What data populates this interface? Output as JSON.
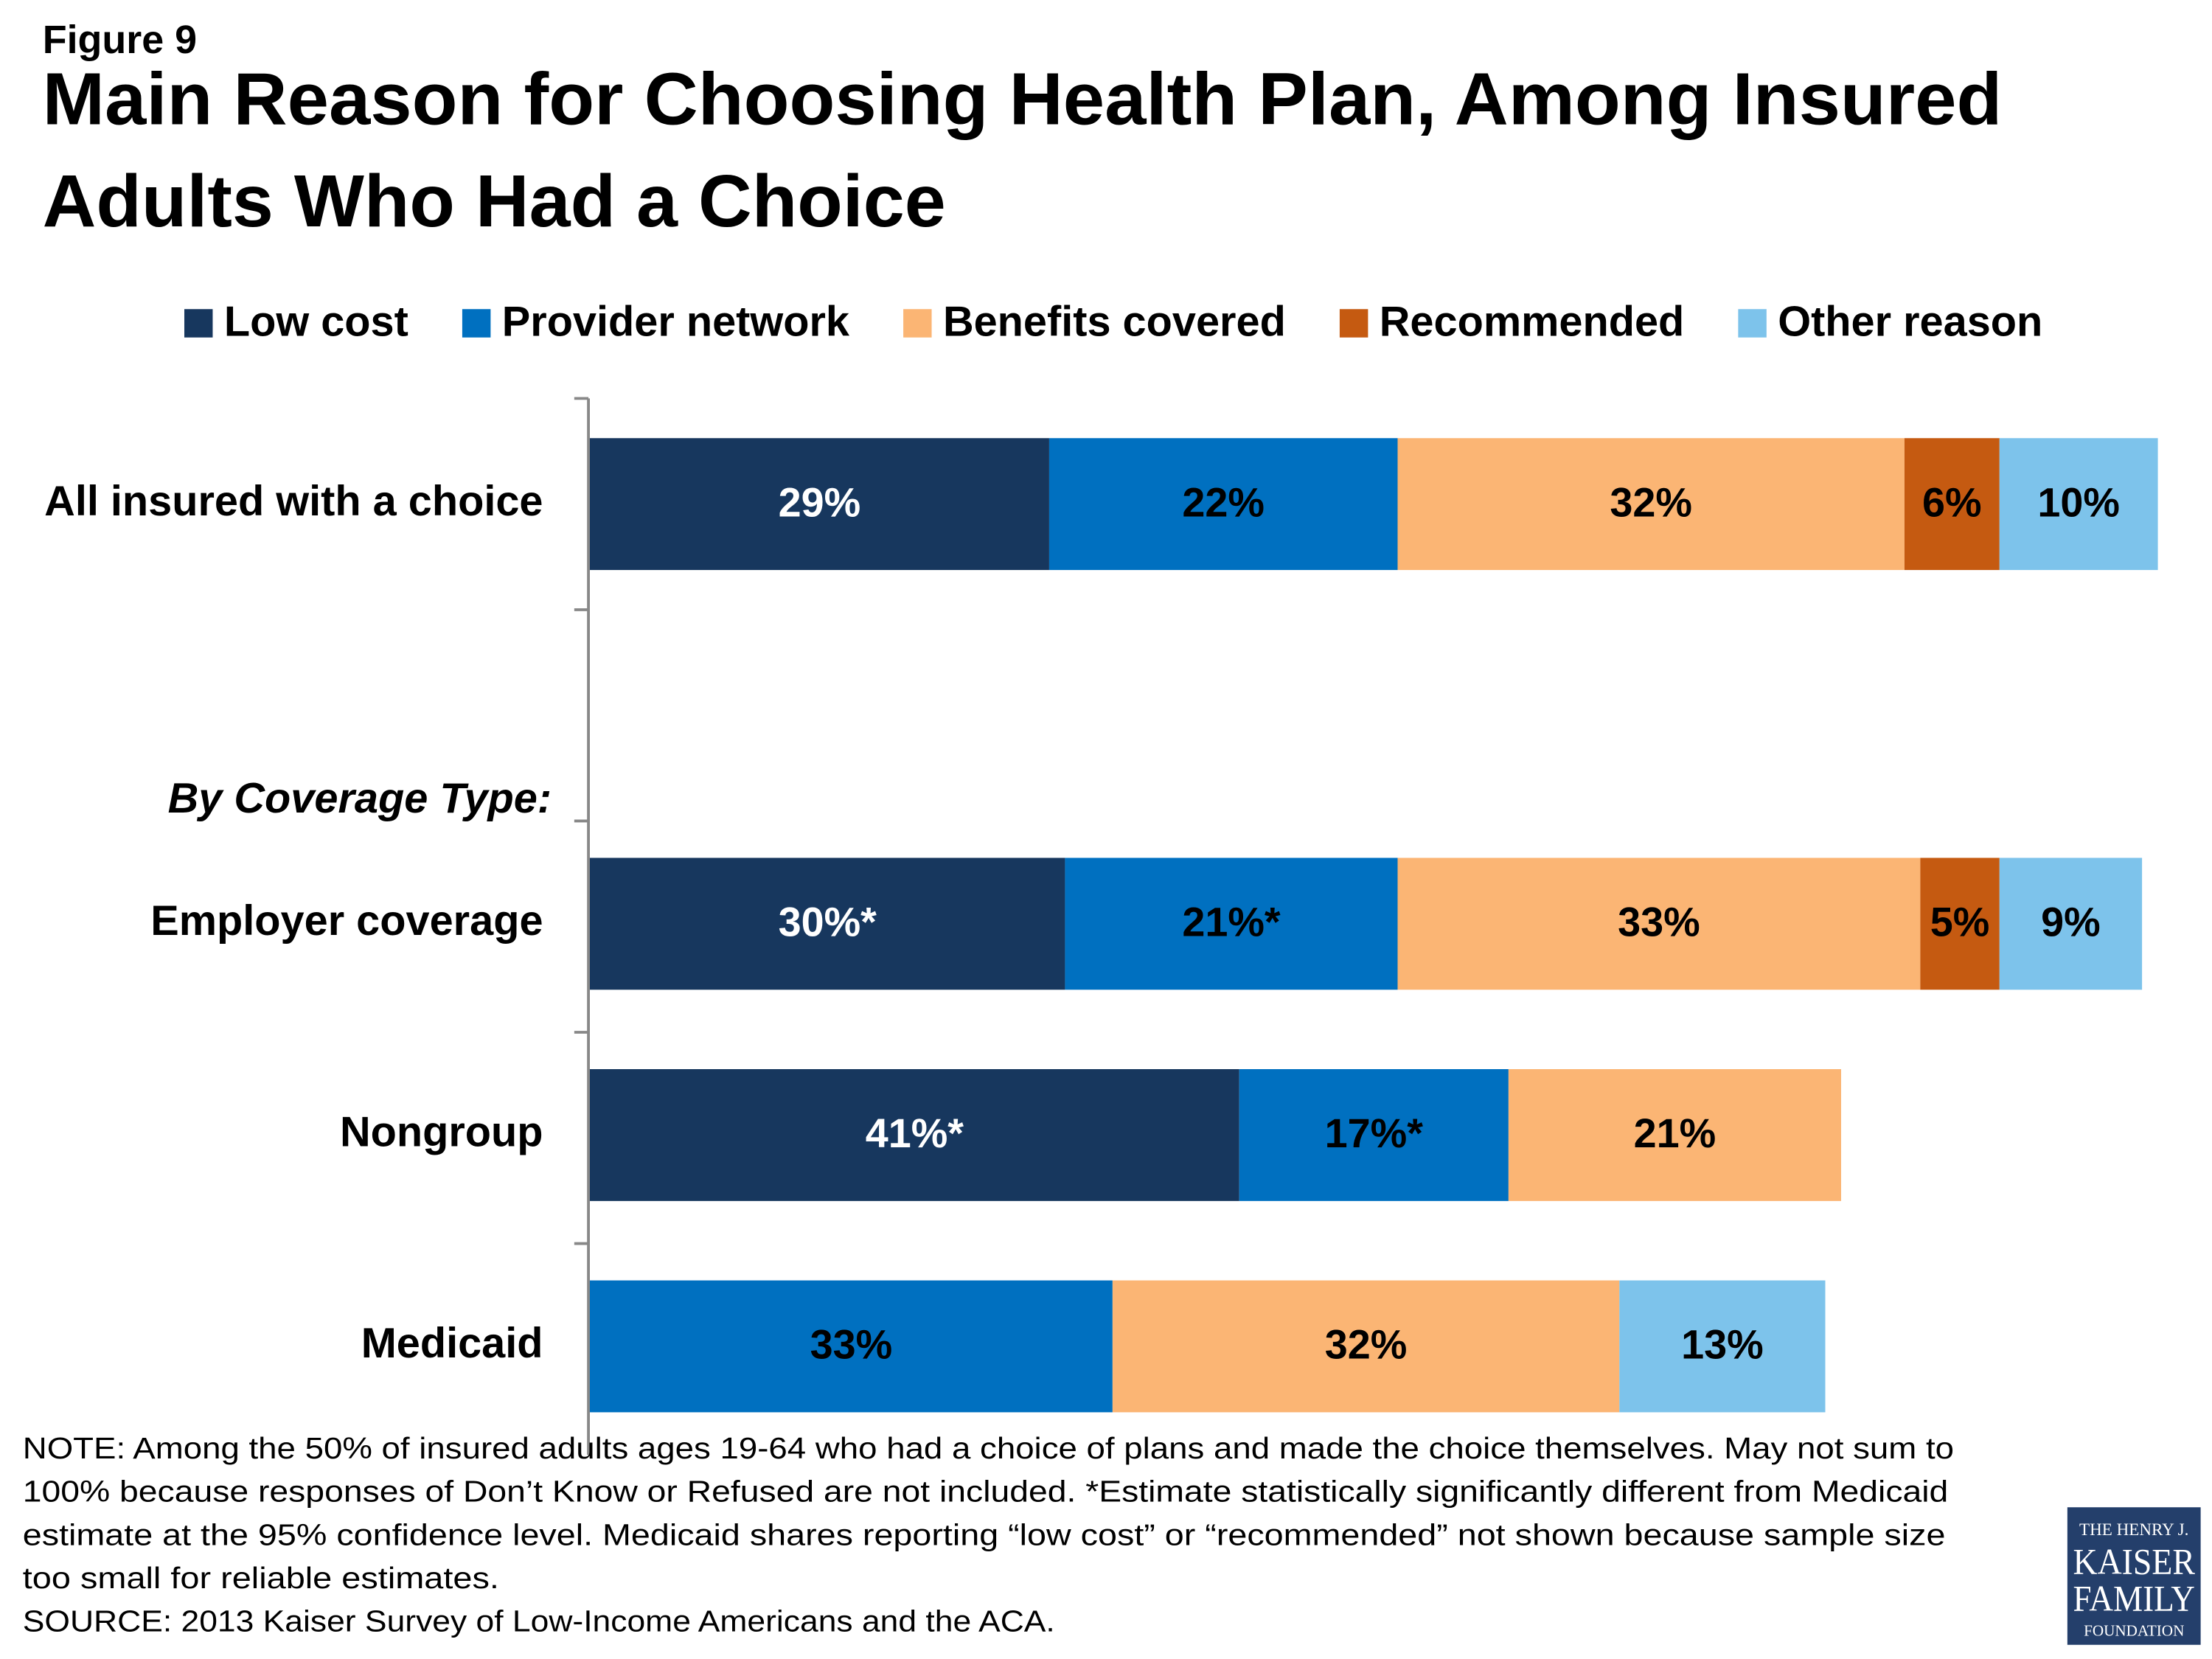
{
  "chart_data": {
    "type": "stacked-bar-horizontal",
    "figure_label": "Figure 9",
    "title": [
      "Main Reason for Choosing Health Plan, Among Insured",
      "Adults Who Had a Choice"
    ],
    "categories": [
      "All insured with a choice",
      "By Coverage Type:",
      "Employer coverage",
      "Nongroup",
      "Medicaid"
    ],
    "xlim": [
      0,
      100
    ],
    "series": [
      {
        "name": "Low cost",
        "color": "#17375e",
        "values": [
          29,
          null,
          30,
          41,
          null
        ],
        "value_labels": [
          "29%",
          null,
          "30%*",
          "41%*",
          null
        ]
      },
      {
        "name": "Provider network",
        "color": "#0070c0",
        "values": [
          22,
          null,
          21,
          17,
          33
        ],
        "value_labels": [
          "22%",
          null,
          "21%*",
          "17%*",
          "33%"
        ]
      },
      {
        "name": "Benefits covered",
        "color": "#fbb574",
        "values": [
          32,
          null,
          33,
          21,
          32
        ],
        "value_labels": [
          "32%",
          null,
          "33%",
          "21%",
          "32%"
        ]
      },
      {
        "name": "Recommended",
        "color": "#c55a11",
        "values": [
          6,
          null,
          5,
          null,
          null
        ],
        "value_labels": [
          "6%",
          null,
          "5%",
          null,
          null
        ]
      },
      {
        "name": "Other reason",
        "color": "#7dc3eb",
        "values": [
          10,
          null,
          9,
          null,
          13
        ],
        "value_labels": [
          "10%",
          null,
          "9%",
          null,
          "13%"
        ]
      }
    ],
    "notes": [
      "NOTE: Among the 50% of insured adults ages 19-64 who had a choice of plans and made the choice themselves. May not sum to",
      "100% because responses of Don’t Know or Refused are not included. *Estimate statistically significantly different from Medicaid",
      "estimate  at the 95% confidence level. Medicaid shares reporting “low cost” or “recommended” not shown because sample size",
      "too small for reliable estimates.",
      "SOURCE: 2013 Kaiser Survey of Low-Income Americans and the ACA."
    ],
    "logo": [
      "THE HENRY J.",
      "KAISER",
      "FAMILY",
      "FOUNDATION"
    ]
  }
}
